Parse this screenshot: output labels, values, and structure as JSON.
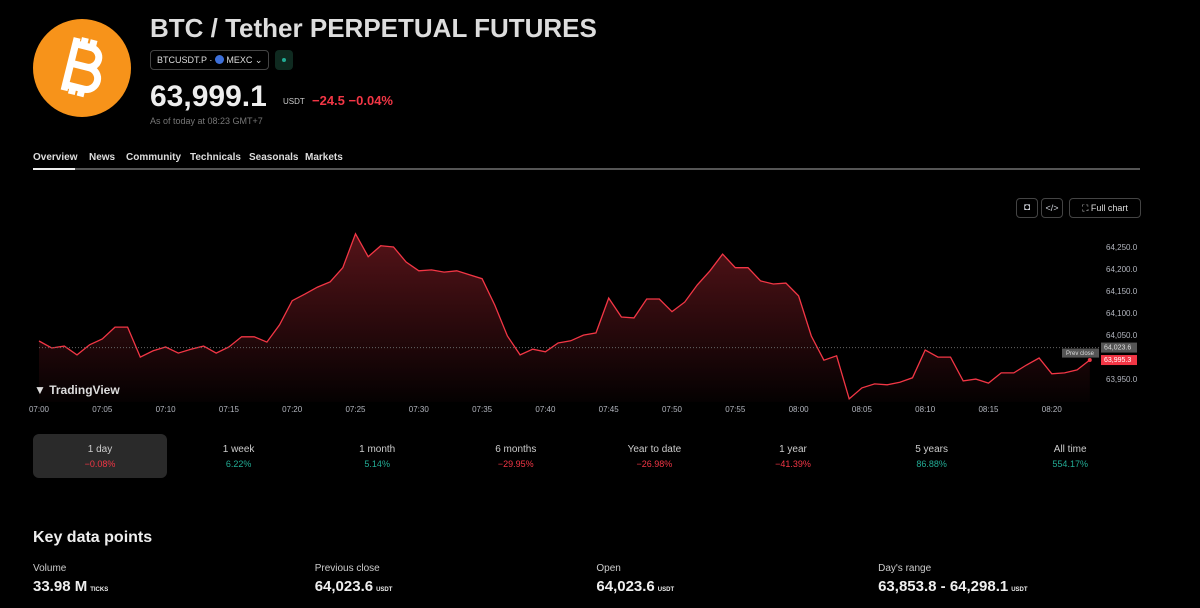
{
  "header": {
    "title": "BTC / Tether PERPETUAL FUTURES",
    "symbol": "BTCUSDT.P",
    "exchange": "MEXC",
    "price": "63,999.1",
    "currency": "USDT",
    "change": "−24.5",
    "change_pct": "−0.04%",
    "as_of": "As of today at 08:23 GMT+7"
  },
  "tabs": [
    "Overview",
    "News",
    "Community",
    "Technicals",
    "Seasonals",
    "Markets"
  ],
  "toolbar": {
    "full_chart": "Full chart"
  },
  "watermark": "TradingView",
  "chart_data": {
    "type": "line",
    "color": "#f23645",
    "x": [
      "07:00",
      "07:01",
      "07:02",
      "07:03",
      "07:04",
      "07:05",
      "07:06",
      "07:07",
      "07:08",
      "07:09",
      "07:10",
      "07:11",
      "07:12",
      "07:13",
      "07:14",
      "07:15",
      "07:16",
      "07:17",
      "07:18",
      "07:19",
      "07:20",
      "07:21",
      "07:22",
      "07:23",
      "07:24",
      "07:25",
      "07:26",
      "07:27",
      "07:28",
      "07:29",
      "07:30",
      "07:31",
      "07:32",
      "07:33",
      "07:34",
      "07:35",
      "07:36",
      "07:37",
      "07:38",
      "07:39",
      "07:40",
      "07:41",
      "07:42",
      "07:43",
      "07:44",
      "07:45",
      "07:46",
      "07:47",
      "07:48",
      "07:49",
      "07:50",
      "07:51",
      "07:52",
      "07:53",
      "07:54",
      "07:55",
      "07:56",
      "07:57",
      "07:58",
      "07:59",
      "08:00",
      "08:01",
      "08:02",
      "08:03",
      "08:04",
      "08:05",
      "08:06",
      "08:07",
      "08:08",
      "08:09",
      "08:10",
      "08:11",
      "08:12",
      "08:13",
      "08:14",
      "08:15",
      "08:16",
      "08:17",
      "08:18",
      "08:19",
      "08:20",
      "08:21",
      "08:22",
      "08:23"
    ],
    "values": [
      64038.6,
      64022.7,
      64027,
      64007,
      64030,
      64043,
      64070,
      64070,
      64002,
      64016,
      64025,
      64011,
      64020,
      64027,
      64011,
      64025,
      64048,
      64048,
      64036,
      64075,
      64130,
      64145,
      64161,
      64173,
      64205,
      64282,
      64230,
      64255,
      64252,
      64218,
      64198,
      64200,
      64195,
      64198,
      64189,
      64180,
      64120,
      64050,
      64007,
      64020,
      64014,
      64034,
      64039,
      64052,
      64057,
      64136,
      64093,
      64091,
      64134,
      64134,
      64105,
      64127,
      64166,
      64198,
      64236,
      64205,
      64205,
      64175,
      64168,
      64170,
      64141,
      64050,
      63995,
      64005,
      63907,
      63932,
      63941,
      63939,
      63945,
      63955,
      64018,
      64002,
      64002,
      63948,
      63952,
      63943,
      63966,
      63966,
      63984,
      64000,
      63964,
      63966,
      63973,
      63995.3
    ],
    "xticks": [
      "07:00",
      "07:05",
      "07:10",
      "07:15",
      "07:20",
      "07:25",
      "07:30",
      "07:35",
      "07:40",
      "07:45",
      "07:50",
      "07:55",
      "08:00",
      "08:05",
      "08:10",
      "08:15",
      "08:20"
    ],
    "ylim": [
      63900,
      64302
    ],
    "yticks": [
      {
        "value": 64250,
        "label": "64,250.0"
      },
      {
        "value": 64200,
        "label": "64,200.0"
      },
      {
        "value": 64150,
        "label": "64,150.0"
      },
      {
        "value": 64100,
        "label": "64,100.0"
      },
      {
        "value": 64050,
        "label": "64,050.0"
      },
      {
        "value": 63950,
        "label": "63,950.0"
      }
    ],
    "prev_close": {
      "name": "Prev close",
      "value": 64023.6,
      "label": "64,023.6"
    },
    "last": {
      "value": 63995.3,
      "label": "63,995.3"
    }
  },
  "periods": [
    {
      "label": "1 day",
      "change": "−0.08%"
    },
    {
      "label": "1 week",
      "change": "6.22%"
    },
    {
      "label": "1 month",
      "change": "5.14%"
    },
    {
      "label": "6 months",
      "change": "−29.95%"
    },
    {
      "label": "Year to date",
      "change": "−26.98%"
    },
    {
      "label": "1 year",
      "change": "−41.39%"
    },
    {
      "label": "5 years",
      "change": "86.88%"
    },
    {
      "label": "All time",
      "change": "554.17%"
    }
  ],
  "key_data": {
    "title": "Key data points",
    "items": [
      {
        "label": "Volume",
        "value": "33.98 M",
        "unit": "TICKS"
      },
      {
        "label": "Previous close",
        "value": "64,023.6",
        "unit": "USDT"
      },
      {
        "label": "Open",
        "value": "64,023.6",
        "unit": "USDT"
      },
      {
        "label": "Day's range",
        "value": "63,853.8 - 64,298.1",
        "unit": "USDT"
      }
    ]
  }
}
